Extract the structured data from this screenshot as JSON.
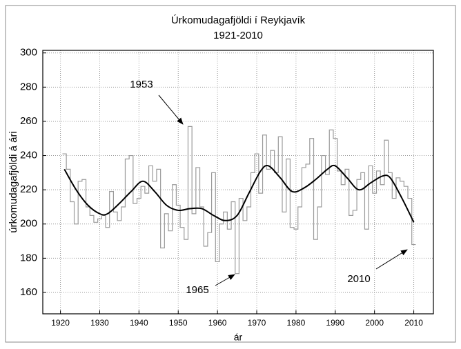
{
  "chart_data": {
    "type": "step",
    "title": "Úrkomudagafjöldi í Reykjavík",
    "subtitle": "1921-2010",
    "xlabel": "ár",
    "ylabel": "úrkomudagafjöldi á ári",
    "xlim": [
      1915.5,
      2015
    ],
    "ylim": [
      147.5,
      301.5
    ],
    "xticks": [
      1920,
      1930,
      1940,
      1950,
      1960,
      1970,
      1980,
      1990,
      2000,
      2010
    ],
    "yticks": [
      160,
      180,
      200,
      220,
      240,
      260,
      280,
      300
    ],
    "grid": true,
    "series": [
      {
        "color": "#9a9a9a",
        "style": "step",
        "x": [
          1921,
          1922,
          1923,
          1924,
          1925,
          1926,
          1927,
          1928,
          1929,
          1930,
          1931,
          1932,
          1933,
          1934,
          1935,
          1936,
          1937,
          1938,
          1939,
          1940,
          1941,
          1942,
          1943,
          1944,
          1945,
          1946,
          1947,
          1948,
          1949,
          1950,
          1951,
          1952,
          1953,
          1954,
          1955,
          1956,
          1957,
          1958,
          1959,
          1960,
          1961,
          1962,
          1963,
          1964,
          1965,
          1966,
          1967,
          1968,
          1969,
          1970,
          1971,
          1972,
          1973,
          1974,
          1975,
          1976,
          1977,
          1978,
          1979,
          1980,
          1981,
          1982,
          1983,
          1984,
          1985,
          1986,
          1987,
          1988,
          1989,
          1990,
          1991,
          1992,
          1993,
          1994,
          1995,
          1996,
          1997,
          1998,
          1999,
          2000,
          2001,
          2002,
          2003,
          2004,
          2005,
          2006,
          2007,
          2008,
          2009,
          2010
        ],
        "values": [
          241,
          232,
          213,
          200,
          225,
          226,
          210,
          205,
          201,
          203,
          205,
          198,
          219,
          207,
          202,
          210,
          238,
          240,
          212,
          215,
          222,
          218,
          234,
          225,
          232,
          186,
          206,
          196,
          223,
          211,
          198,
          191,
          257,
          206,
          233,
          210,
          187,
          195,
          230,
          178,
          200,
          207,
          197,
          213,
          171,
          215,
          202,
          210,
          230,
          241,
          218,
          252,
          232,
          243,
          230,
          251,
          207,
          238,
          198,
          197,
          210,
          233,
          235,
          250,
          191,
          210,
          240,
          229,
          255,
          250,
          231,
          223,
          232,
          205,
          208,
          226,
          230,
          197,
          234,
          218,
          231,
          223,
          249,
          230,
          215,
          227,
          225,
          222,
          215,
          188
        ]
      },
      {
        "color": "#000000",
        "style": "smooth",
        "x": [
          1921,
          1924,
          1927,
          1930,
          1932,
          1935,
          1938,
          1941,
          1944,
          1947,
          1950,
          1953,
          1956,
          1959,
          1962,
          1965,
          1968,
          1971,
          1973,
          1976,
          1979,
          1982,
          1985,
          1988,
          1990,
          1993,
          1996,
          1999,
          2002,
          2004,
          2007,
          2010
        ],
        "values": [
          232,
          220,
          211,
          206,
          206,
          212,
          219,
          225,
          219,
          211,
          208,
          209,
          209,
          205,
          202,
          205,
          218,
          231,
          234,
          227,
          219,
          221,
          226,
          232,
          234,
          227,
          220,
          224,
          228,
          227,
          215,
          201
        ]
      }
    ],
    "annotations": [
      "1953",
      "1965",
      "2010"
    ]
  }
}
